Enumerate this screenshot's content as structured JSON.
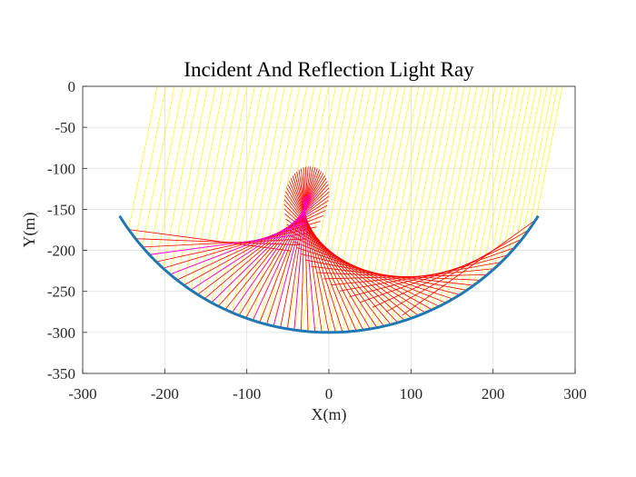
{
  "chart_data": {
    "type": "line",
    "title": "Incident And Reflection Light Ray",
    "xlabel": "X(m)",
    "ylabel": "Y(m)",
    "xlim": [
      -300,
      300
    ],
    "ylim": [
      -350,
      0
    ],
    "xticks": [
      -300,
      -200,
      -100,
      0,
      100,
      200,
      300
    ],
    "yticks": [
      0,
      -50,
      -100,
      -150,
      -200,
      -250,
      -300,
      -350
    ],
    "xtick_labels": [
      "-300",
      "-200",
      "-100",
      "0",
      "100",
      "200",
      "300"
    ],
    "ytick_labels": [
      "0",
      "-50",
      "-100",
      "-150",
      "-200",
      "-250",
      "-300",
      "-350"
    ],
    "grid": true,
    "mirror": {
      "name": "reflector surface",
      "color": "#1f77b4",
      "center": [
        0,
        0
      ],
      "radius": 300,
      "x_range": [
        -255,
        255
      ]
    },
    "incident_rays": {
      "color": "#ffff00",
      "count": 60,
      "direction": [
        0.2,
        1
      ],
      "x_range": [
        -244,
        252
      ],
      "y_top": 0
    },
    "reflected_rays": {
      "color": "#ff0000",
      "count": 60,
      "length": 200
    },
    "highlight_rays": {
      "color": "#ff00ff",
      "x_range": [
        -240,
        -2
      ]
    }
  }
}
